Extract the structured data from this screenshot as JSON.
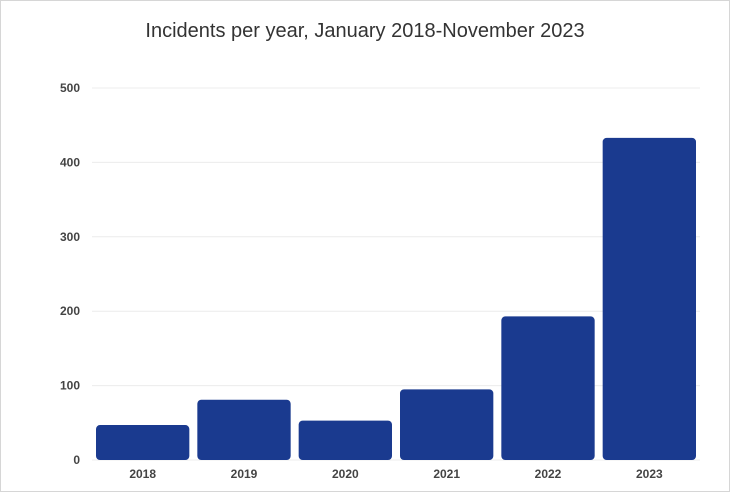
{
  "chart_data": {
    "type": "bar",
    "title": "Incidents per year, January 2018-November 2023",
    "categories": [
      "2018",
      "2019",
      "2020",
      "2021",
      "2022",
      "2023"
    ],
    "values": [
      47,
      81,
      53,
      95,
      193,
      433
    ],
    "ylim": [
      0,
      500
    ],
    "yticks": [
      0,
      100,
      200,
      300,
      400,
      500
    ],
    "xlabel": "",
    "ylabel": "",
    "grid": true,
    "legend": "none",
    "colors": {
      "bar": "#1a3a8f",
      "grid": "#ececec",
      "text": "#444444"
    }
  }
}
